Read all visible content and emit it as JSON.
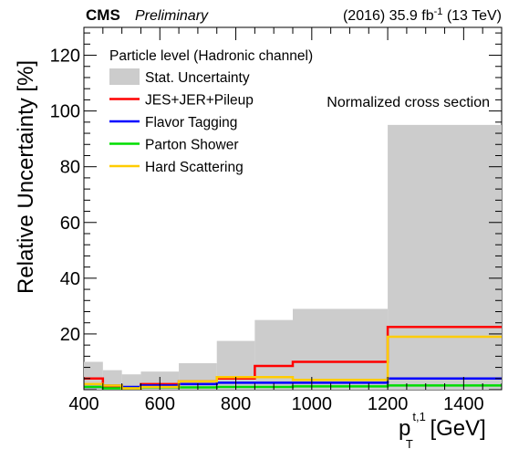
{
  "chart_data": {
    "type": "step",
    "title_left": "CMS",
    "title_left_sub": "Preliminary",
    "title_right": "(2016) 35.9 fb",
    "title_right_sup": "-1",
    "title_right_tail": " (13 TeV)",
    "annotation": "Normalized cross section",
    "legend_header": "Particle level (Hadronic channel)",
    "xlabel_main": "p",
    "xlabel_sub": "T",
    "xlabel_sup": "t,1",
    "xlabel_unit": " [GeV]",
    "ylabel": "Relative Uncertainty [%]",
    "xlim": [
      400,
      1500
    ],
    "ylim": [
      0,
      130
    ],
    "xticks": [
      400,
      600,
      800,
      1000,
      1200,
      1400
    ],
    "yticks": [
      20,
      40,
      60,
      80,
      100,
      120
    ],
    "bin_edges": [
      400,
      450,
      500,
      550,
      650,
      750,
      850,
      950,
      1200,
      1500
    ],
    "band": {
      "name": "Stat. Uncertainty",
      "color": "#cccccc",
      "values": [
        10,
        7,
        5.5,
        6.5,
        9.5,
        17.5,
        25,
        29,
        95
      ]
    },
    "series": [
      {
        "name": "JES+JER+Pileup",
        "color": "#ff0000",
        "values": [
          4,
          1,
          0.5,
          2,
          3,
          4,
          8.5,
          10,
          22.5
        ]
      },
      {
        "name": "Flavor Tagging",
        "color": "#0000ff",
        "values": [
          1,
          1.5,
          1,
          1.5,
          2,
          2.5,
          2.5,
          2.5,
          4
        ]
      },
      {
        "name": "Parton Shower",
        "color": "#00dd00",
        "values": [
          1,
          0.5,
          0.5,
          0.8,
          0.8,
          1,
          1,
          1.2,
          1.5
        ]
      },
      {
        "name": "Hard Scattering",
        "color": "#ffcc00",
        "values": [
          2,
          1.5,
          0.5,
          1,
          3,
          4.5,
          4.5,
          3.5,
          19
        ]
      }
    ]
  }
}
